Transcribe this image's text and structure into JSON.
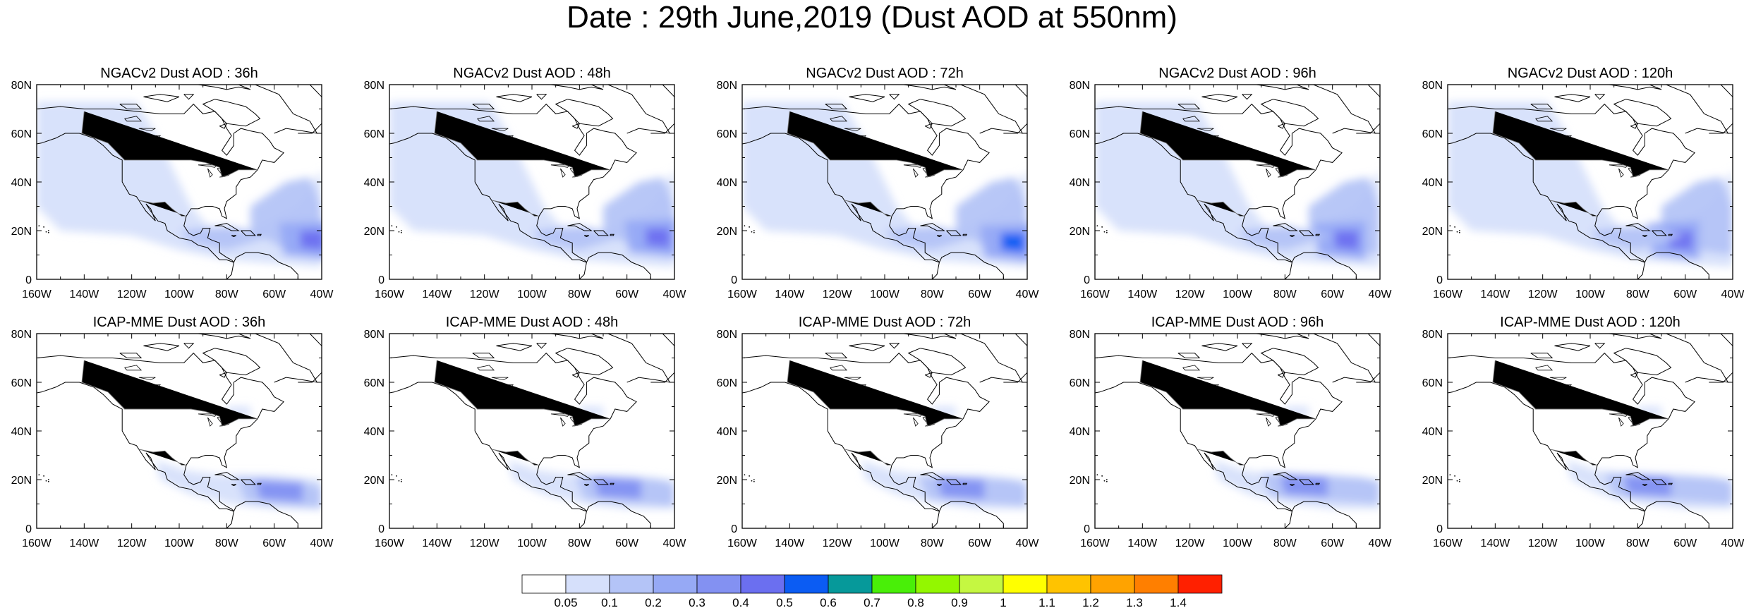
{
  "title": "Date : 29th June,2019 (Dust AOD at 550nm)",
  "lon_ticks": [
    "160W",
    "140W",
    "120W",
    "100W",
    "80W",
    "60W",
    "40W"
  ],
  "lat_ticks": [
    "80N",
    "60N",
    "40N",
    "20N",
    "0"
  ],
  "map_extent": {
    "lon": [
      -160,
      -40
    ],
    "lat": [
      0,
      80
    ]
  },
  "rows": [
    {
      "model": "NGACv2",
      "panels": [
        {
          "title": "NGACv2 Dust AOD : 36h",
          "plume_peak_aod": 0.4,
          "plume_center": [
            -42,
            16
          ]
        },
        {
          "title": "NGACv2 Dust AOD : 48h",
          "plume_peak_aod": 0.4,
          "plume_center": [
            -45,
            17
          ]
        },
        {
          "title": "NGACv2 Dust AOD : 72h",
          "plume_peak_aod": 0.5,
          "plume_center": [
            -44,
            15
          ]
        },
        {
          "title": "NGACv2 Dust AOD : 96h",
          "plume_peak_aod": 0.4,
          "plume_center": [
            -52,
            16
          ]
        },
        {
          "title": "NGACv2 Dust AOD : 120h",
          "plume_peak_aod": 0.4,
          "plume_center": [
            -60,
            16
          ]
        }
      ]
    },
    {
      "model": "ICAP-MME",
      "panels": [
        {
          "title": "ICAP-MME Dust AOD : 36h",
          "plume_peak_aod": 0.3,
          "plume_center": [
            -62,
            17
          ]
        },
        {
          "title": "ICAP-MME Dust AOD : 48h",
          "plume_peak_aod": 0.3,
          "plume_center": [
            -68,
            18
          ]
        },
        {
          "title": "ICAP-MME Dust AOD : 72h",
          "plume_peak_aod": 0.3,
          "plume_center": [
            -72,
            18
          ]
        },
        {
          "title": "ICAP-MME Dust AOD : 96h",
          "plume_peak_aod": 0.3,
          "plume_center": [
            -76,
            19
          ]
        },
        {
          "title": "ICAP-MME Dust AOD : 120h",
          "plume_peak_aod": 0.3,
          "plume_center": [
            -80,
            19
          ]
        }
      ]
    }
  ],
  "colorbar": {
    "colors": [
      "#ffffff",
      "#d6e0fb",
      "#b4c4f7",
      "#96a9f5",
      "#8391f2",
      "#6b6ff0",
      "#0b5cf3",
      "#06999a",
      "#49ef08",
      "#93f700",
      "#c5f741",
      "#ffff00",
      "#ffc300",
      "#ffa300",
      "#ff7f00",
      "#ff2000"
    ],
    "labels": [
      "0.05",
      "0.1",
      "0.2",
      "0.3",
      "0.4",
      "0.5",
      "0.6",
      "0.7",
      "0.8",
      "0.9",
      "1",
      "1.1",
      "1.2",
      "1.3",
      "1.4"
    ]
  }
}
